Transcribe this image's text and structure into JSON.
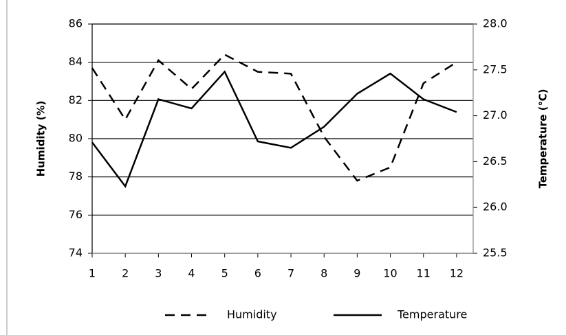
{
  "chart_data": {
    "type": "line",
    "x": [
      1,
      2,
      3,
      4,
      5,
      6,
      7,
      8,
      9,
      10,
      11,
      12
    ],
    "xlim": [
      1,
      12.5
    ],
    "xticks": [
      1,
      2,
      3,
      4,
      5,
      6,
      7,
      8,
      9,
      10,
      11,
      12
    ],
    "y_label": "Humidity (%)",
    "y2_label": "Temperature (℃)",
    "ylim": [
      74,
      86
    ],
    "yticks": [
      74,
      76,
      78,
      80,
      82,
      84,
      86
    ],
    "y2lim": [
      25.5,
      28
    ],
    "y2ticks": [
      {
        "value": 25.5,
        "label": "25.5"
      },
      {
        "value": 26,
        "label": "26.0"
      },
      {
        "value": 26.5,
        "label": "26.5"
      },
      {
        "value": 27,
        "label": "27.0"
      },
      {
        "value": 27.5,
        "label": "27.5"
      },
      {
        "value": 28,
        "label": "28.0"
      }
    ],
    "grid": true,
    "legend": "bottom",
    "series": [
      {
        "name": "Humidity",
        "color": "#000000",
        "line_style": "dashed",
        "values": [
          83.7,
          81.0,
          84.1,
          82.6,
          84.4,
          83.5,
          83.4,
          80.1,
          77.8,
          78.5,
          82.9,
          84.0
        ]
      },
      {
        "name": "Temperature",
        "color": "#000000",
        "line_style": "solid",
        "axis": "y2",
        "values": [
          26.71,
          26.23,
          27.18,
          27.08,
          27.48,
          26.72,
          26.65,
          26.88,
          27.24,
          27.46,
          27.18,
          27.04
        ]
      }
    ]
  }
}
